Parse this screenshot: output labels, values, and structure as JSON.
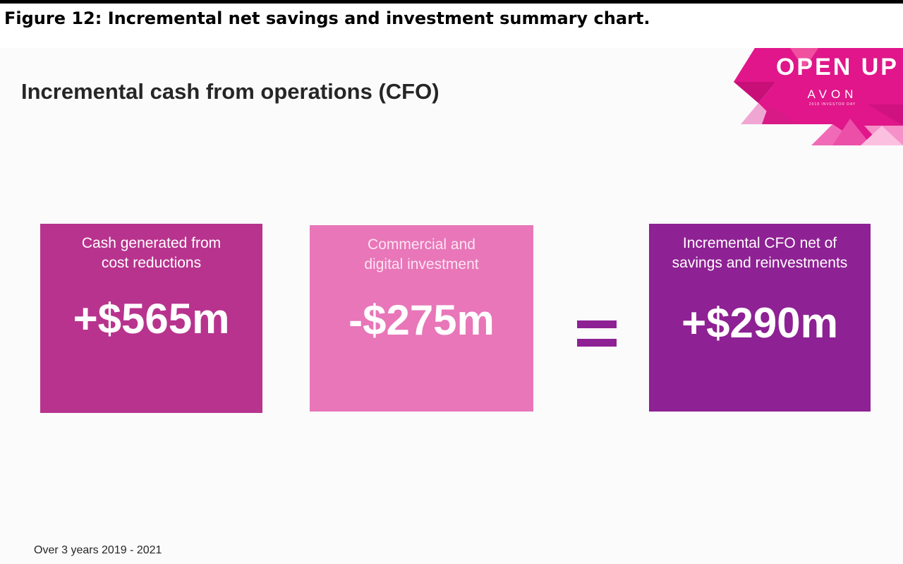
{
  "caption": "Figure 12: Incremental net savings and investment summary chart.",
  "slide": {
    "title": "Incremental cash from operations (CFO)",
    "logo": {
      "main": "OPEN UP",
      "brand": "AVON",
      "sub": "2018 INVESTOR DAY"
    },
    "boxes": [
      {
        "label_line1": "Cash generated from",
        "label_line2": "cost reductions",
        "value": "+$565m",
        "color": "#b8338e"
      },
      {
        "label_line1": "Commercial and",
        "label_line2": "digital investment",
        "value": "-$275m",
        "color": "#e876b9"
      },
      {
        "label_line1": "Incremental CFO net of",
        "label_line2": "savings and reinvestments",
        "value": "+$290m",
        "color": "#8e2193"
      }
    ],
    "footnote": "Over 3 years 2019 - 2021"
  }
}
